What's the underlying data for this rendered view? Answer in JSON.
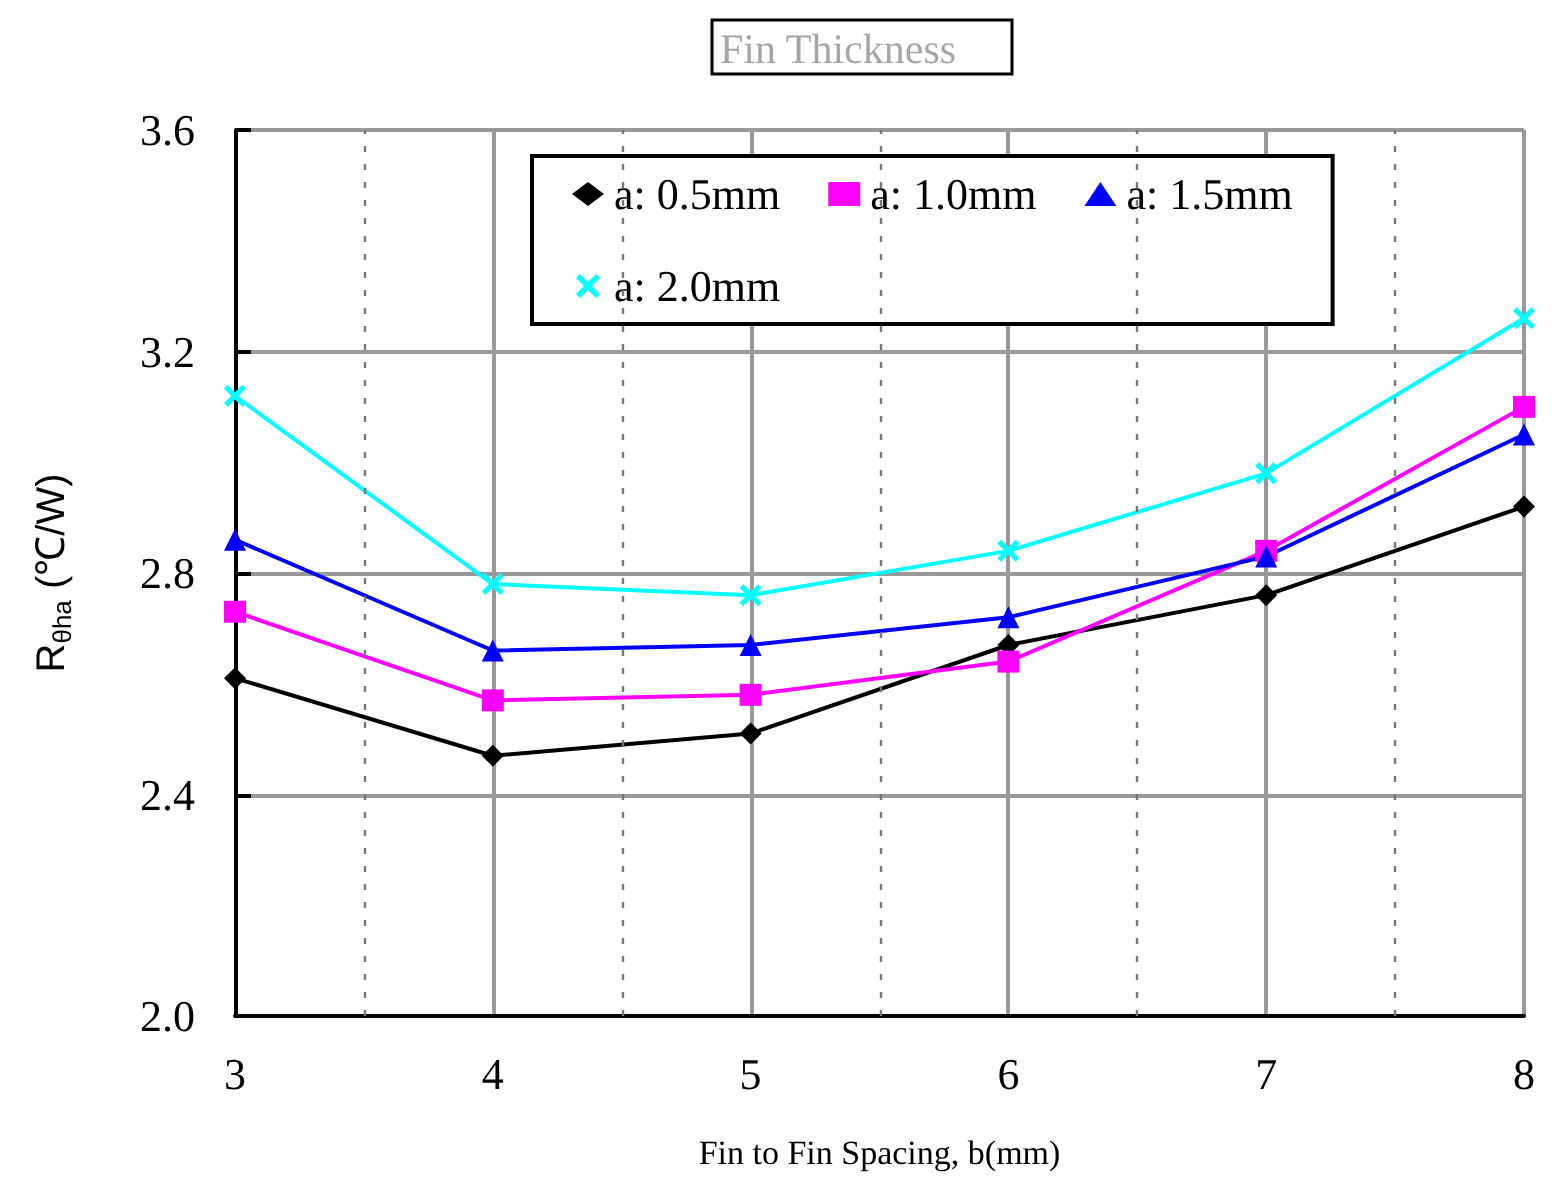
{
  "chart_data": {
    "type": "line",
    "title": "Fin Thickness",
    "xlabel": "Fin to Fin Spacing, b(mm)",
    "ylabel": "R$_{θha}$ (℃/W)",
    "x": [
      3,
      4,
      5,
      6,
      7,
      8
    ],
    "series": [
      {
        "name": "a: 0.5mm",
        "color": "#000000",
        "marker": "diamond",
        "values": [
          2.61,
          2.47,
          2.51,
          2.67,
          2.76,
          2.92
        ]
      },
      {
        "name": "a: 1.0mm",
        "color": "#ff00ff",
        "marker": "square",
        "values": [
          2.73,
          2.57,
          2.58,
          2.64,
          2.84,
          3.1
        ]
      },
      {
        "name": "a: 1.5mm",
        "color": "#0000ff",
        "marker": "triangle",
        "values": [
          2.86,
          2.66,
          2.67,
          2.72,
          2.83,
          3.05
        ]
      },
      {
        "name": "a: 2.0mm",
        "color": "#00ffff",
        "marker": "cross",
        "values": [
          3.12,
          2.78,
          2.76,
          2.84,
          2.98,
          3.26
        ]
      }
    ],
    "xlim": [
      3,
      8
    ],
    "xticks": [
      3,
      4,
      5,
      6,
      7,
      8
    ],
    "ylim": [
      2,
      3.6
    ],
    "yticks": [
      {
        "value": 2,
        "label": "2.0"
      },
      {
        "value": 2.4,
        "label": "2.4"
      },
      {
        "value": 2.8,
        "label": "2.8"
      },
      {
        "value": 3.2,
        "label": "3.2"
      },
      {
        "value": 3.6,
        "label": "3.6"
      }
    ],
    "grid": true,
    "legend": "top",
    "line_style": "solid"
  }
}
